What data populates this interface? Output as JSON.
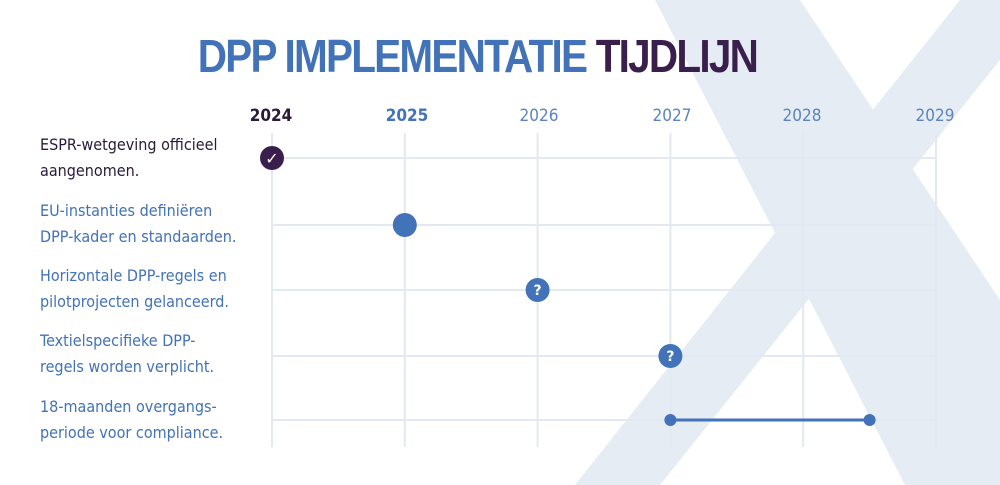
{
  "title": {
    "part1": "DPP IMPLEMENTATIE",
    "part2": "TIJDLIJN"
  },
  "colors": {
    "blue": "#4272b8",
    "dark": "#3a1f4c",
    "grid": "#e3e8f2",
    "bgx": "#e6ecf4"
  },
  "chart_data": {
    "type": "timeline",
    "title": "DPP IMPLEMENTATIE TIJDLIJN",
    "years": [
      "2024",
      "2025",
      "2026",
      "2027",
      "2028",
      "2029"
    ],
    "events": [
      {
        "label": "ESPR-wetgeving officieel aangenomen.",
        "year": 2024,
        "marker": "check",
        "status": "done"
      },
      {
        "label": "EU-instanties definiëren DPP-kader en standaarden.",
        "year": 2025,
        "marker": "dot",
        "status": "current"
      },
      {
        "label": "Horizontale DPP-regels en pilotprojecten gelanceerd.",
        "year": 2026,
        "marker": "question",
        "status": "uncertain"
      },
      {
        "label": "Textielspecifieke DPP-regels worden verplicht.",
        "year": 2027,
        "marker": "question",
        "status": "uncertain"
      },
      {
        "label": "18-maanden overgangsperiode voor compliance.",
        "start": 2027,
        "end": 2028.5,
        "marker": "range",
        "status": "planned"
      }
    ]
  },
  "labels": [
    [
      "ESPR-wetgeving officieel",
      "aangenomen."
    ],
    [
      "EU-instanties definiëren",
      "DPP-kader en standaarden."
    ],
    [
      "Horizontale DPP-regels en",
      "pilotprojecten gelanceerd."
    ],
    [
      "Textielspecifieke DPP-",
      "regels worden verplicht."
    ],
    [
      "18-maanden overgangs-",
      "periode voor compliance."
    ]
  ],
  "markers": {
    "check": "✓",
    "question": "?"
  }
}
